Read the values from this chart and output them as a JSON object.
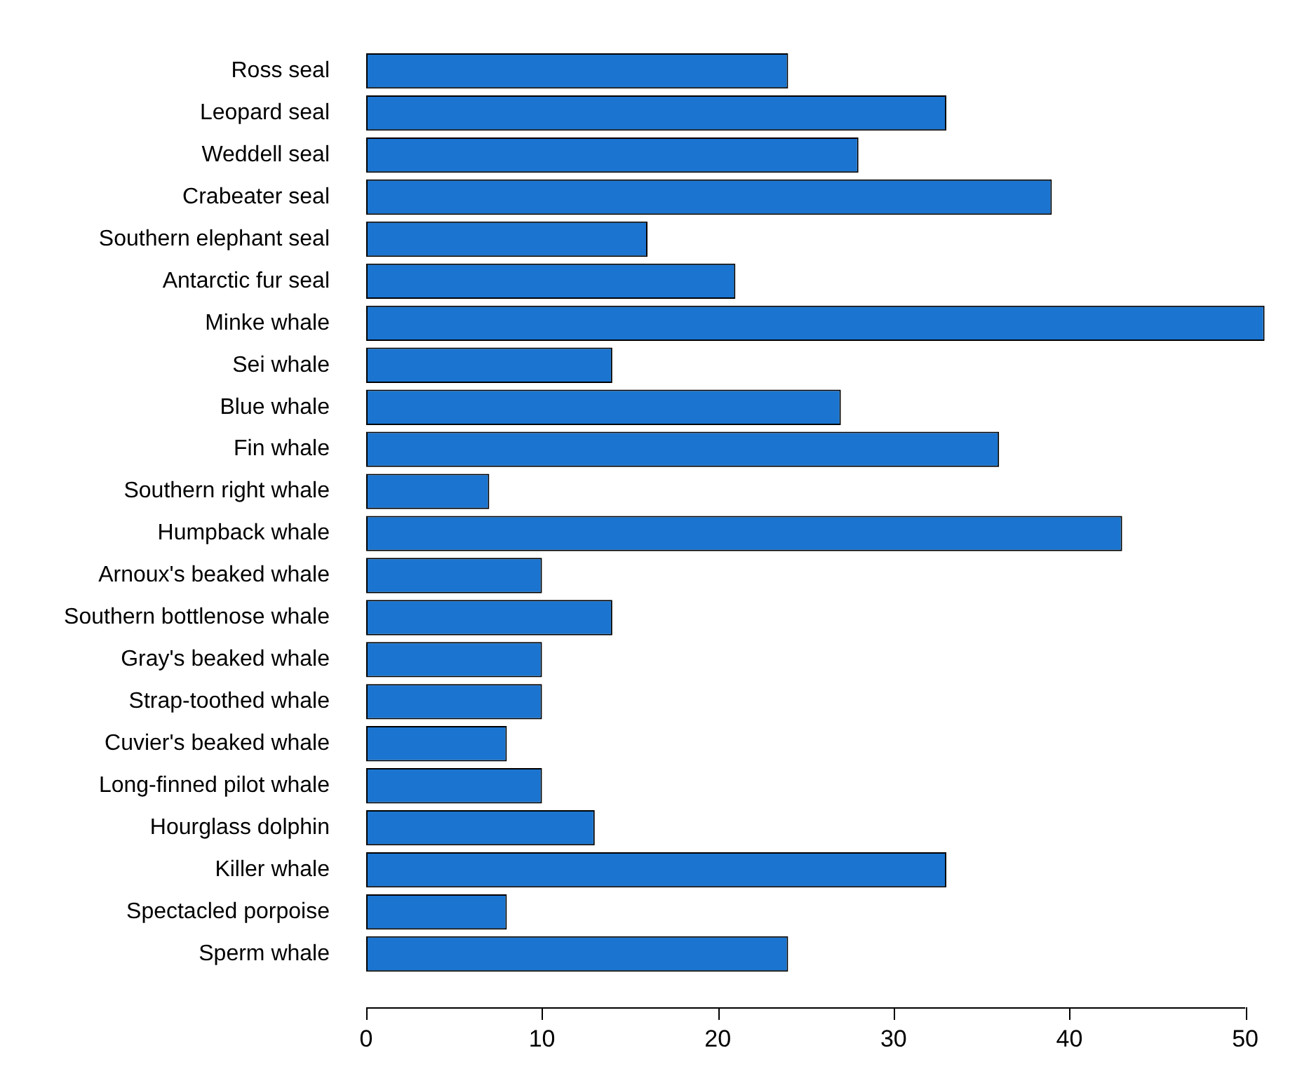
{
  "chart_data": {
    "type": "bar",
    "orientation": "horizontal",
    "categories": [
      "Ross seal",
      "Leopard seal",
      "Weddell seal",
      "Crabeater seal",
      "Southern elephant seal",
      "Antarctic fur seal",
      "Minke whale",
      "Sei whale",
      "Blue whale",
      "Fin whale",
      "Southern right whale",
      "Humpback whale",
      "Arnoux's beaked whale",
      "Southern bottlenose whale",
      "Gray's beaked whale",
      "Strap-toothed whale",
      "Cuvier's beaked whale",
      "Long-finned pilot whale",
      "Hourglass dolphin",
      "Killer whale",
      "Spectacled porpoise",
      "Sperm whale"
    ],
    "values": [
      24,
      33,
      28,
      39,
      16,
      21,
      51.1,
      14,
      27,
      36,
      7,
      43,
      10,
      14,
      10,
      10,
      8,
      10,
      13,
      33,
      8,
      24
    ],
    "color": "#1b75d0",
    "xlim": [
      0,
      51.1
    ],
    "xticks": [
      0,
      10,
      20,
      30,
      40,
      50
    ],
    "grid": false,
    "legend": false
  }
}
